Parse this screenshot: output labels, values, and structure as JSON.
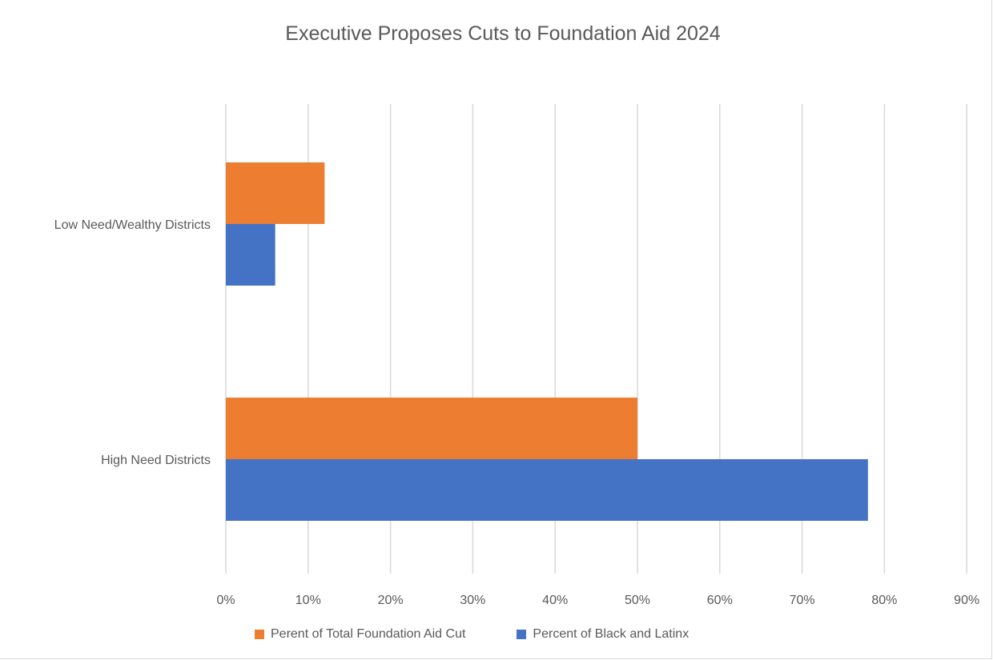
{
  "chart_data": {
    "type": "bar",
    "orientation": "horizontal",
    "title": "Executive Proposes Cuts to Foundation Aid 2024",
    "xlabel": "",
    "ylabel": "",
    "categories": [
      "Low Need/Wealthy Districts",
      "High Need Districts"
    ],
    "series": [
      {
        "name": "Perent of Total Foundation Aid Cut",
        "values": [
          12,
          50
        ],
        "color": "#ED7D31"
      },
      {
        "name": "Percent of Black  and Latinx",
        "values": [
          6,
          78
        ],
        "color": "#4472C4"
      }
    ],
    "xlim": [
      0,
      90
    ],
    "x_ticks": [
      0,
      10,
      20,
      30,
      40,
      50,
      60,
      70,
      80,
      90
    ],
    "x_tick_labels": [
      "0%",
      "10%",
      "20%",
      "30%",
      "40%",
      "50%",
      "60%",
      "70%",
      "80%",
      "90%"
    ],
    "grid": "vertical",
    "legend": "bottom"
  }
}
